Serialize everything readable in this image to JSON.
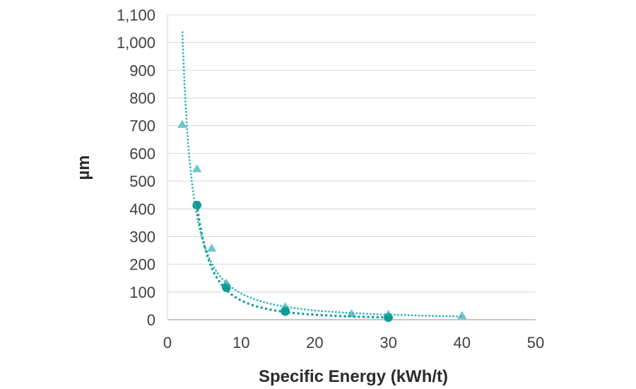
{
  "chart_data": {
    "type": "scatter",
    "title": "",
    "x_axis": {
      "label": "Specific Energy (kWh/t)",
      "min": 0,
      "max": 50,
      "ticks": [
        {
          "value": 0,
          "label": "0"
        },
        {
          "value": 10,
          "label": "10"
        },
        {
          "value": 20,
          "label": "20"
        },
        {
          "value": 30,
          "label": "30"
        },
        {
          "value": 40,
          "label": "40"
        },
        {
          "value": 50,
          "label": "50"
        }
      ]
    },
    "y_axis": {
      "label": "µm",
      "min": 0,
      "max": 1100,
      "ticks": [
        {
          "value": 0,
          "label": "0"
        },
        {
          "value": 100,
          "label": "100"
        },
        {
          "value": 200,
          "label": "200"
        },
        {
          "value": 300,
          "label": "300"
        },
        {
          "value": 400,
          "label": "400"
        },
        {
          "value": 500,
          "label": "500"
        },
        {
          "value": 600,
          "label": "600"
        },
        {
          "value": 700,
          "label": "700"
        },
        {
          "value": 800,
          "label": "800"
        },
        {
          "value": 900,
          "label": "900"
        },
        {
          "value": 1000,
          "label": "1,000"
        },
        {
          "value": 1100,
          "label": "1,100"
        }
      ]
    },
    "grid": true,
    "legend": "none",
    "colors": {
      "gridline": "#d9d9d9",
      "axis_line": "#b3b3b3",
      "y_axis_line": "#d9d9d9",
      "tick_label": "#3f3f3f"
    },
    "series": [
      {
        "name": "triangle-series",
        "marker": "triangle",
        "color": "#6cc7cc",
        "points": [
          [
            2,
            705
          ],
          [
            4,
            545
          ],
          [
            6,
            258
          ],
          [
            8,
            133
          ],
          [
            16,
            48
          ],
          [
            25,
            22
          ],
          [
            30,
            20
          ],
          [
            40,
            15
          ]
        ],
        "trendline": {
          "type": "power",
          "a": 3000,
          "b": -1.5,
          "x_start": 2.03,
          "x_end": 40,
          "color": "#35b4ba",
          "dot_shape": "round"
        }
      },
      {
        "name": "circle-series",
        "marker": "circle",
        "color": "#0e9c96",
        "points": [
          [
            4,
            413
          ],
          [
            8,
            116
          ],
          [
            16,
            30
          ],
          [
            30,
            8
          ]
        ],
        "trendline": {
          "type": "power",
          "a": 6200,
          "b": -1.95,
          "x_start": 4,
          "x_end": 30,
          "color": "#0e9c96",
          "dot_shape": "square"
        }
      }
    ]
  }
}
